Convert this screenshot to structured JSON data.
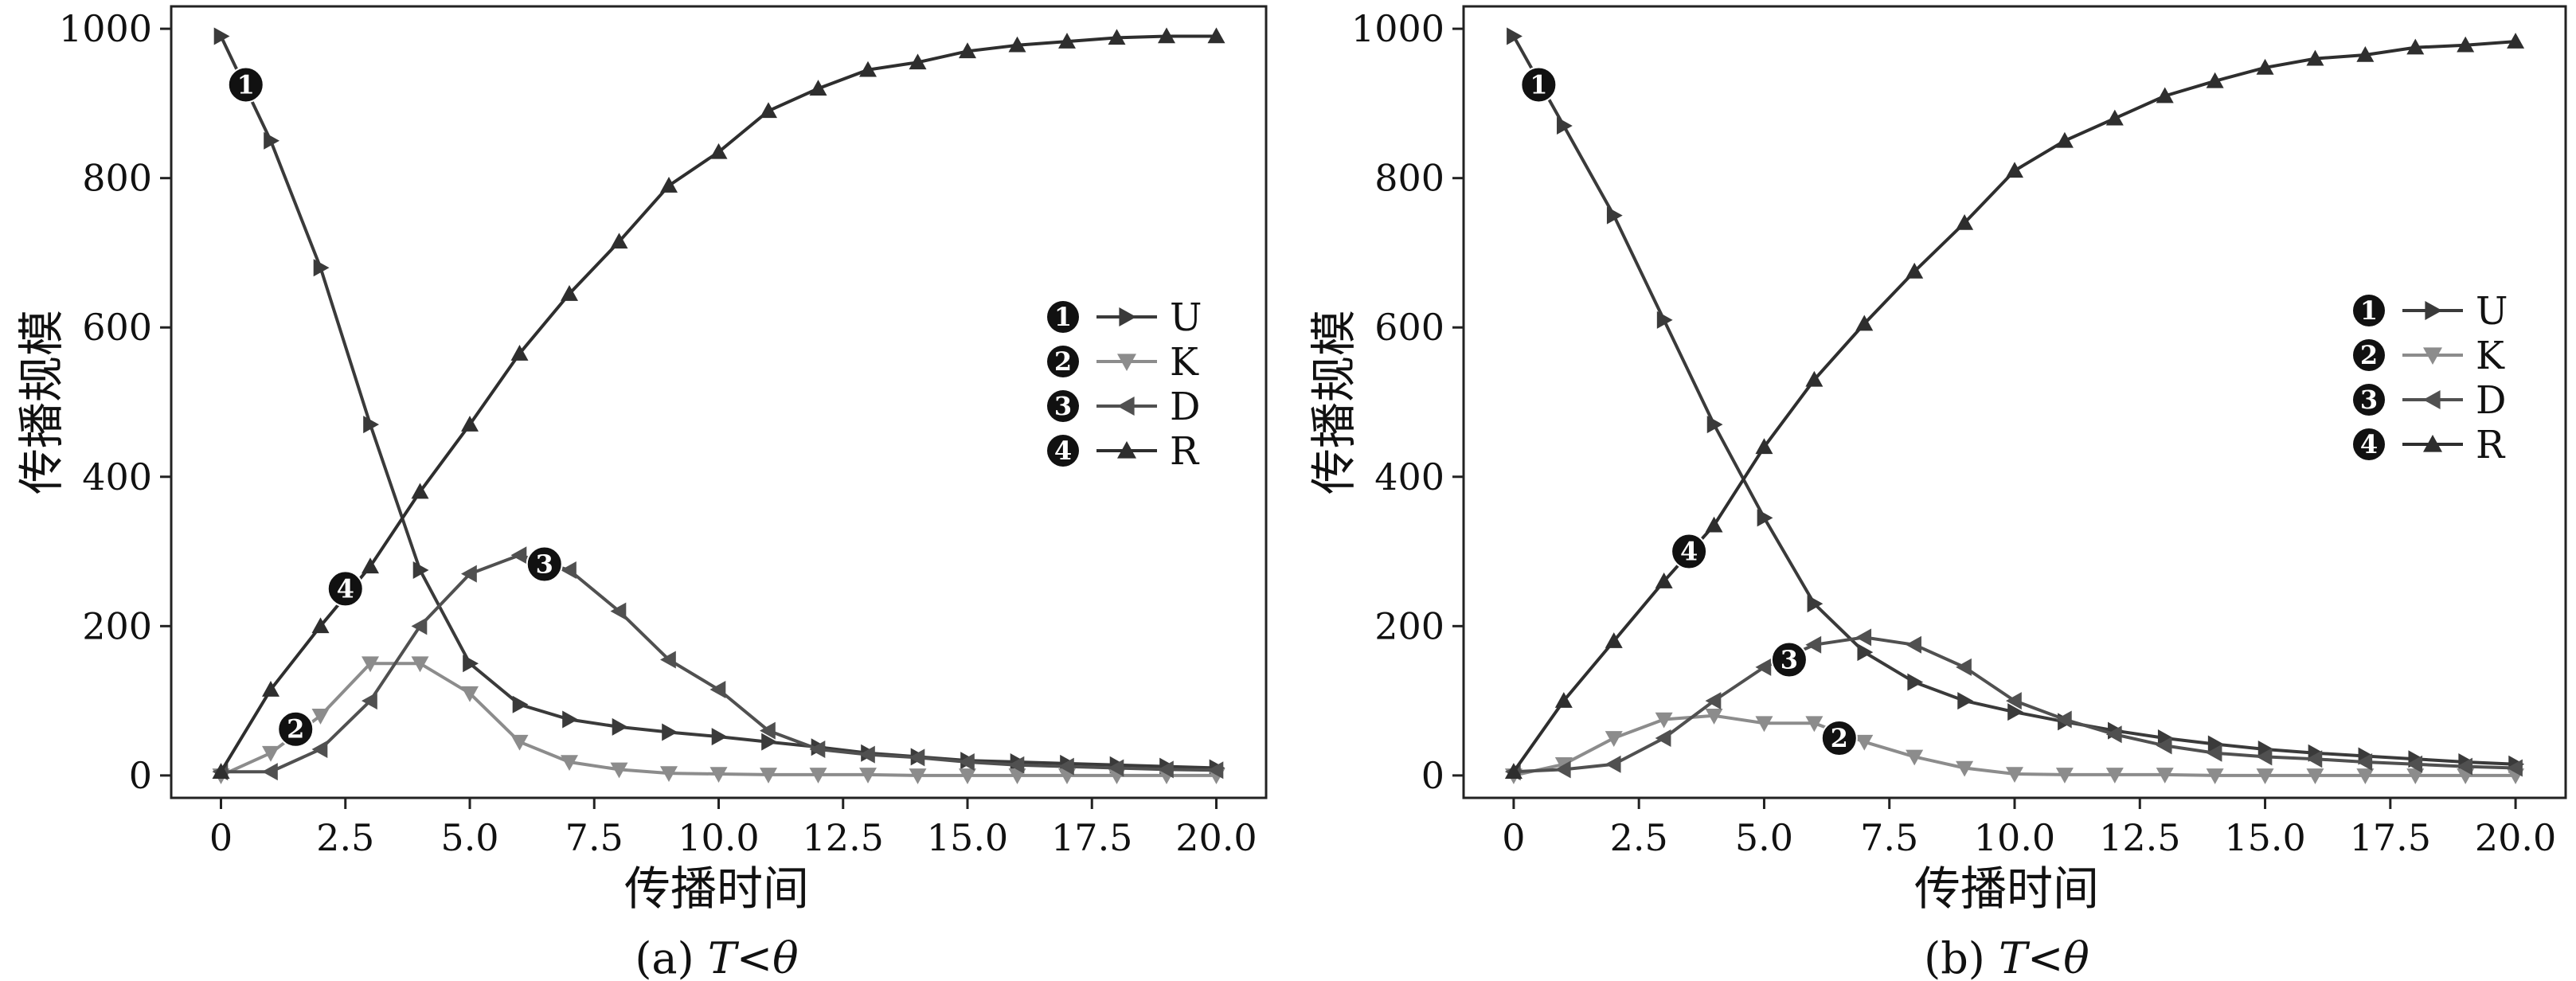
{
  "figure": {
    "panel_a_caption_prefix": "(a) ",
    "panel_a_caption_var": "T<θ",
    "panel_b_caption_prefix": "(b) ",
    "panel_b_caption_var": "T<θ"
  },
  "colors": {
    "U": "#3a3a3a",
    "K": "#8c8c8c",
    "D": "#505050",
    "R": "#2e2e2e",
    "axes": "#222222",
    "marker_bg": "#111111"
  },
  "chart_data": [
    {
      "type": "line",
      "caption": "(a) T<θ",
      "xlabel": "传播时间",
      "ylabel": "传播规模",
      "xlim": [
        -1,
        21
      ],
      "ylim": [
        -30,
        1030
      ],
      "xticks": [
        0,
        2.5,
        5.0,
        7.5,
        10.0,
        12.5,
        15.0,
        17.5,
        20.0
      ],
      "xtick_labels": [
        "0",
        "2.5",
        "5.0",
        "7.5",
        "10.0",
        "12.5",
        "15.0",
        "17.5",
        "20.0"
      ],
      "yticks": [
        0,
        200,
        400,
        600,
        800,
        1000
      ],
      "ytick_labels": [
        "0",
        "200",
        "400",
        "600",
        "800",
        "1000"
      ],
      "legend_position": "right",
      "x": [
        0,
        1,
        2,
        3,
        4,
        5,
        6,
        7,
        8,
        9,
        10,
        11,
        12,
        13,
        14,
        15,
        16,
        17,
        18,
        19,
        20
      ],
      "series": [
        {
          "name": "U",
          "marker": "triangle-right",
          "number": "1",
          "values": [
            990,
            850,
            680,
            470,
            275,
            150,
            95,
            75,
            65,
            58,
            52,
            45,
            38,
            30,
            25,
            20,
            18,
            16,
            14,
            12,
            10
          ]
        },
        {
          "name": "K",
          "marker": "triangle-down",
          "number": "2",
          "values": [
            0,
            30,
            80,
            150,
            150,
            110,
            45,
            18,
            8,
            3,
            2,
            1,
            1,
            1,
            0,
            0,
            0,
            0,
            0,
            0,
            0
          ]
        },
        {
          "name": "D",
          "marker": "triangle-left",
          "number": "3",
          "values": [
            5,
            5,
            35,
            100,
            200,
            270,
            295,
            275,
            220,
            155,
            115,
            60,
            35,
            28,
            24,
            18,
            14,
            12,
            10,
            8,
            7
          ]
        },
        {
          "name": "R",
          "marker": "triangle-up",
          "number": "4",
          "values": [
            5,
            115,
            200,
            280,
            380,
            470,
            565,
            645,
            715,
            790,
            835,
            890,
            920,
            945,
            955,
            970,
            978,
            983,
            988,
            990,
            990
          ]
        }
      ],
      "annotations": [
        {
          "number": "1",
          "x": 0.5,
          "y": 925
        },
        {
          "number": "2",
          "x": 1.5,
          "y": 62
        },
        {
          "number": "3",
          "x": 6.5,
          "y": 283
        },
        {
          "number": "4",
          "x": 2.5,
          "y": 250
        }
      ]
    },
    {
      "type": "line",
      "caption": "(b) T<θ",
      "xlabel": "传播时间",
      "ylabel": "传播规模",
      "xlim": [
        -1,
        21
      ],
      "ylim": [
        -30,
        1030
      ],
      "xticks": [
        0,
        2.5,
        5.0,
        7.5,
        10.0,
        12.5,
        15.0,
        17.5,
        20.0
      ],
      "xtick_labels": [
        "0",
        "2.5",
        "5.0",
        "7.5",
        "10.0",
        "12.5",
        "15.0",
        "17.5",
        "20.0"
      ],
      "yticks": [
        0,
        200,
        400,
        600,
        800,
        1000
      ],
      "ytick_labels": [
        "0",
        "200",
        "400",
        "600",
        "800",
        "1000"
      ],
      "legend_position": "right",
      "x": [
        0,
        1,
        2,
        3,
        4,
        5,
        6,
        7,
        8,
        9,
        10,
        11,
        12,
        13,
        14,
        15,
        16,
        17,
        18,
        19,
        20
      ],
      "series": [
        {
          "name": "U",
          "marker": "triangle-right",
          "number": "1",
          "values": [
            990,
            870,
            750,
            610,
            470,
            345,
            230,
            165,
            125,
            100,
            85,
            72,
            60,
            50,
            42,
            35,
            30,
            26,
            22,
            18,
            15
          ]
        },
        {
          "name": "K",
          "marker": "triangle-down",
          "number": "2",
          "values": [
            0,
            15,
            50,
            75,
            80,
            70,
            70,
            45,
            25,
            10,
            2,
            1,
            1,
            1,
            0,
            0,
            0,
            0,
            0,
            0,
            0
          ]
        },
        {
          "name": "D",
          "marker": "triangle-left",
          "number": "3",
          "values": [
            5,
            8,
            15,
            50,
            100,
            145,
            175,
            185,
            175,
            145,
            100,
            75,
            55,
            40,
            30,
            25,
            22,
            18,
            15,
            12,
            10
          ]
        },
        {
          "name": "R",
          "marker": "triangle-up",
          "number": "4",
          "values": [
            5,
            100,
            180,
            260,
            335,
            440,
            530,
            605,
            675,
            740,
            810,
            850,
            880,
            910,
            930,
            948,
            960,
            965,
            975,
            978,
            983
          ]
        }
      ],
      "annotations": [
        {
          "number": "1",
          "x": 0.5,
          "y": 925
        },
        {
          "number": "2",
          "x": 6.5,
          "y": 50
        },
        {
          "number": "3",
          "x": 5.5,
          "y": 155
        },
        {
          "number": "4",
          "x": 3.5,
          "y": 300
        }
      ]
    }
  ]
}
